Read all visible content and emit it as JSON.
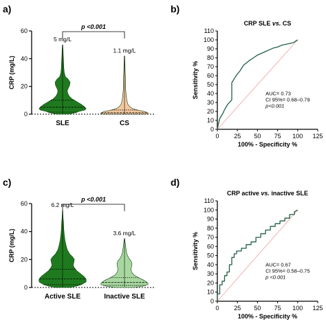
{
  "panels": [
    {
      "letter": "a)"
    },
    {
      "letter": "b)"
    },
    {
      "letter": "c)"
    },
    {
      "letter": "d)"
    }
  ],
  "chart_data": [
    {
      "type": "violin",
      "panel": "a)",
      "ylabel": "CRP (mg/L)",
      "ylim": [
        0,
        60
      ],
      "yticks": [
        "0",
        "20",
        "40",
        "60"
      ],
      "significance": "p <0.001",
      "categories": [
        {
          "label": "SLE",
          "median_label": "5 mg/L",
          "median": 5,
          "q1": 1.5,
          "q3": 10,
          "min": 0.5,
          "max": 50,
          "color": "#1f7a1f",
          "profile": [
            [
              0,
              0.25
            ],
            [
              1,
              0.55
            ],
            [
              2,
              0.7
            ],
            [
              3,
              0.95
            ],
            [
              4,
              1.0
            ],
            [
              5,
              0.95
            ],
            [
              7,
              0.8
            ],
            [
              9,
              0.6
            ],
            [
              11,
              0.4
            ],
            [
              13,
              0.28
            ],
            [
              15,
              0.22
            ],
            [
              17,
              0.2
            ],
            [
              19,
              0.25
            ],
            [
              21,
              0.3
            ],
            [
              23,
              0.32
            ],
            [
              25,
              0.25
            ],
            [
              27,
              0.12
            ],
            [
              30,
              0.07
            ],
            [
              34,
              0.05
            ],
            [
              38,
              0.04
            ],
            [
              42,
              0.03
            ],
            [
              46,
              0.02
            ],
            [
              50,
              0.01
            ]
          ]
        },
        {
          "label": "CS",
          "median_label": "1.1 mg/L",
          "median": 1.1,
          "q1": 0.3,
          "q3": 3,
          "min": 0,
          "max": 42,
          "color": "#f3c8a0",
          "profile": [
            [
              0,
              0.9
            ],
            [
              0.5,
              1.0
            ],
            [
              1,
              1.0
            ],
            [
              2,
              0.85
            ],
            [
              3,
              0.55
            ],
            [
              4,
              0.35
            ],
            [
              5,
              0.25
            ],
            [
              7,
              0.15
            ],
            [
              10,
              0.1
            ],
            [
              14,
              0.07
            ],
            [
              18,
              0.05
            ],
            [
              22,
              0.05
            ],
            [
              26,
              0.04
            ],
            [
              30,
              0.03
            ],
            [
              36,
              0.02
            ],
            [
              42,
              0.01
            ]
          ]
        }
      ]
    },
    {
      "type": "line",
      "panel": "b)",
      "title": "CRP SLE vs. CS",
      "title_plain": "CRP SLE ",
      "title_italic": "vs.",
      "title_tail": " CS",
      "xlabel": "100% - Specificity %",
      "ylabel": "Sensitivity %",
      "xlim": [
        0,
        125
      ],
      "ylim": [
        0,
        110
      ],
      "xticks": [
        "0",
        "25",
        "50",
        "75",
        "100",
        "125"
      ],
      "yticks": [
        "0",
        "10",
        "20",
        "30",
        "40",
        "50",
        "60",
        "70",
        "80",
        "90",
        "100",
        "110"
      ],
      "stats": [
        "AUC= 0.73",
        "CI 95%= 0.68–0.79",
        "p<0.001"
      ],
      "reference_line": [
        [
          0,
          0
        ],
        [
          100,
          100
        ]
      ],
      "series": [
        {
          "points": [
            [
              0,
              0
            ],
            [
              1,
              5
            ],
            [
              2,
              8
            ],
            [
              3,
              12
            ],
            [
              5,
              15
            ],
            [
              7,
              18
            ],
            [
              9,
              22
            ],
            [
              11,
              25
            ],
            [
              13,
              28
            ],
            [
              15,
              30
            ],
            [
              17,
              32
            ],
            [
              18,
              33
            ],
            [
              18,
              52
            ],
            [
              20,
              55
            ],
            [
              22,
              58
            ],
            [
              25,
              62
            ],
            [
              28,
              65
            ],
            [
              30,
              68
            ],
            [
              33,
              72
            ],
            [
              36,
              74
            ],
            [
              40,
              77
            ],
            [
              45,
              80
            ],
            [
              50,
              83
            ],
            [
              55,
              85
            ],
            [
              60,
              87
            ],
            [
              65,
              89
            ],
            [
              70,
              91
            ],
            [
              75,
              92
            ],
            [
              80,
              94
            ],
            [
              85,
              95
            ],
            [
              90,
              96
            ],
            [
              95,
              97
            ],
            [
              98,
              99
            ],
            [
              100,
              100
            ]
          ]
        }
      ]
    },
    {
      "type": "violin",
      "panel": "c)",
      "ylabel": "CRP (mg/L)",
      "ylim": [
        0,
        60
      ],
      "yticks": [
        "0",
        "20",
        "40",
        "60"
      ],
      "significance": "p <0.001",
      "categories": [
        {
          "label": "Active SLE",
          "median_label": "6.2 mg/L",
          "median": 6.2,
          "q1": 2,
          "q3": 13,
          "min": 0.5,
          "max": 55,
          "color": "#1f7a1f",
          "profile": [
            [
              0,
              0.3
            ],
            [
              1,
              0.6
            ],
            [
              2,
              0.8
            ],
            [
              4,
              1.0
            ],
            [
              6,
              1.0
            ],
            [
              8,
              0.9
            ],
            [
              10,
              0.75
            ],
            [
              12,
              0.6
            ],
            [
              14,
              0.5
            ],
            [
              16,
              0.45
            ],
            [
              18,
              0.48
            ],
            [
              20,
              0.5
            ],
            [
              22,
              0.42
            ],
            [
              24,
              0.3
            ],
            [
              27,
              0.2
            ],
            [
              30,
              0.15
            ],
            [
              34,
              0.1
            ],
            [
              38,
              0.07
            ],
            [
              42,
              0.05
            ],
            [
              46,
              0.04
            ],
            [
              50,
              0.02
            ],
            [
              55,
              0.01
            ]
          ]
        },
        {
          "label": "Inactive SLE",
          "median_label": "3.6 mg/L",
          "median": 3.6,
          "q1": 1.5,
          "q3": 7,
          "min": 0.5,
          "max": 35,
          "color": "#a8d8a0",
          "profile": [
            [
              0,
              0.4
            ],
            [
              1,
              0.8
            ],
            [
              2,
              1.0
            ],
            [
              3,
              1.0
            ],
            [
              5,
              0.85
            ],
            [
              7,
              0.6
            ],
            [
              9,
              0.4
            ],
            [
              11,
              0.3
            ],
            [
              13,
              0.28
            ],
            [
              15,
              0.3
            ],
            [
              17,
              0.32
            ],
            [
              19,
              0.28
            ],
            [
              21,
              0.18
            ],
            [
              24,
              0.1
            ],
            [
              28,
              0.06
            ],
            [
              32,
              0.03
            ],
            [
              35,
              0.01
            ]
          ]
        }
      ]
    },
    {
      "type": "line",
      "panel": "d)",
      "title": "CRP active vs. inactive SLE",
      "title_plain": "CRP active ",
      "title_italic": "vs.",
      "title_tail": " inactive SLE",
      "xlabel": "100% - Specificity %",
      "ylabel": "Sensitivity %",
      "xlim": [
        0,
        125
      ],
      "ylim": [
        0,
        110
      ],
      "xticks": [
        "0",
        "25",
        "50",
        "75",
        "100",
        "125"
      ],
      "yticks": [
        "0",
        "10",
        "20",
        "30",
        "40",
        "50",
        "60",
        "70",
        "80",
        "90",
        "100",
        "110"
      ],
      "stats": [
        "AUC= 0.67",
        "CI 95%= 0.58–0.75",
        "p <0.001"
      ],
      "reference_line": [
        [
          0,
          0
        ],
        [
          100,
          100
        ]
      ],
      "series": [
        {
          "points": [
            [
              0,
              0
            ],
            [
              0,
              8
            ],
            [
              3,
              8
            ],
            [
              3,
              18
            ],
            [
              6,
              18
            ],
            [
              6,
              22
            ],
            [
              9,
              22
            ],
            [
              9,
              28
            ],
            [
              12,
              28
            ],
            [
              12,
              32
            ],
            [
              15,
              32
            ],
            [
              15,
              40
            ],
            [
              18,
              40
            ],
            [
              18,
              48
            ],
            [
              21,
              48
            ],
            [
              21,
              52
            ],
            [
              24,
              52
            ],
            [
              24,
              55
            ],
            [
              30,
              55
            ],
            [
              30,
              58
            ],
            [
              36,
              58
            ],
            [
              36,
              62
            ],
            [
              42,
              62
            ],
            [
              42,
              65
            ],
            [
              48,
              65
            ],
            [
              48,
              70
            ],
            [
              54,
              70
            ],
            [
              54,
              74
            ],
            [
              60,
              74
            ],
            [
              60,
              78
            ],
            [
              66,
              78
            ],
            [
              66,
              82
            ],
            [
              72,
              82
            ],
            [
              72,
              85
            ],
            [
              78,
              85
            ],
            [
              78,
              88
            ],
            [
              84,
              88
            ],
            [
              84,
              91
            ],
            [
              90,
              91
            ],
            [
              90,
              95
            ],
            [
              96,
              95
            ],
            [
              96,
              98
            ],
            [
              100,
              100
            ]
          ]
        }
      ]
    }
  ]
}
